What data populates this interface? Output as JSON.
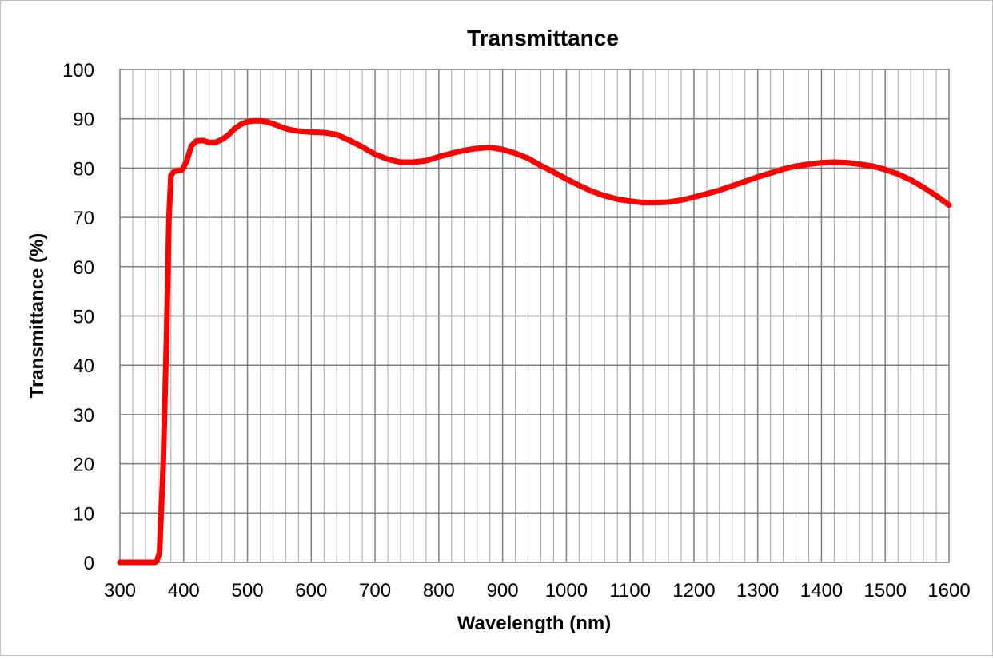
{
  "chart_data": {
    "type": "line",
    "title": "Transmittance",
    "xlabel": "Wavelength (nm)",
    "ylabel": "Transmittance (%)",
    "xlim": [
      300,
      1600
    ],
    "ylim": [
      0,
      100
    ],
    "x_major_step": 100,
    "x_minor_step": 20,
    "y_major_step": 10,
    "grid": true,
    "legend": "none",
    "x_ticks": [
      "300",
      "400",
      "500",
      "600",
      "700",
      "800",
      "900",
      "1000",
      "1100",
      "1200",
      "1300",
      "1400",
      "1500",
      "1600"
    ],
    "y_ticks": [
      "0",
      "10",
      "20",
      "30",
      "40",
      "50",
      "60",
      "70",
      "80",
      "90",
      "100"
    ],
    "series": [
      {
        "color": "#ff0000",
        "x": [
          300,
          355,
          358,
          362,
          368,
          373,
          377,
          380,
          385,
          390,
          398,
          405,
          412,
          420,
          430,
          440,
          450,
          460,
          470,
          480,
          490,
          500,
          510,
          520,
          530,
          540,
          550,
          560,
          570,
          580,
          590,
          600,
          620,
          640,
          660,
          680,
          700,
          720,
          740,
          760,
          780,
          800,
          820,
          840,
          860,
          880,
          900,
          920,
          940,
          960,
          980,
          1000,
          1020,
          1040,
          1060,
          1080,
          1100,
          1120,
          1140,
          1160,
          1180,
          1200,
          1220,
          1240,
          1260,
          1280,
          1300,
          1320,
          1340,
          1360,
          1380,
          1400,
          1420,
          1440,
          1460,
          1480,
          1500,
          1520,
          1540,
          1560,
          1580,
          1600
        ],
        "y": [
          0,
          0,
          0.3,
          2,
          20,
          45,
          70,
          78.5,
          79.3,
          79.5,
          79.7,
          81.5,
          84.5,
          85.5,
          85.6,
          85.2,
          85.2,
          85.8,
          86.7,
          88,
          88.9,
          89.4,
          89.6,
          89.6,
          89.4,
          89,
          88.5,
          88,
          87.7,
          87.5,
          87.4,
          87.3,
          87.2,
          86.8,
          85.6,
          84.3,
          82.8,
          81.8,
          81.2,
          81.2,
          81.5,
          82.3,
          83,
          83.6,
          84,
          84.2,
          83.8,
          83,
          82,
          80.5,
          79.2,
          77.8,
          76.5,
          75.3,
          74.4,
          73.7,
          73.3,
          73.0,
          73.0,
          73.1,
          73.5,
          74.1,
          74.8,
          75.5,
          76.4,
          77.3,
          78.2,
          79,
          79.8,
          80.4,
          80.8,
          81.1,
          81.2,
          81.1,
          80.8,
          80.4,
          79.7,
          78.8,
          77.6,
          76.1,
          74.4,
          72.5
        ]
      }
    ]
  }
}
